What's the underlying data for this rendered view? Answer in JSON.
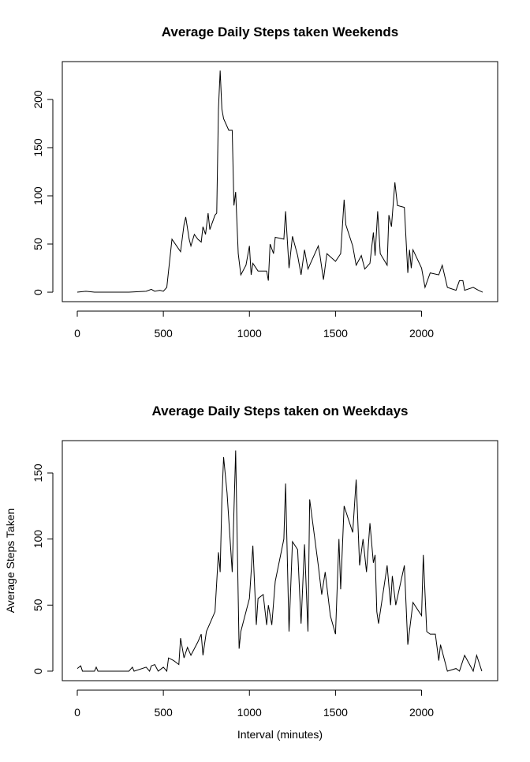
{
  "chart_data": [
    {
      "type": "line",
      "title": "Average Daily Steps taken Weekends",
      "xlim": [
        -87,
        2442
      ],
      "ylim": [
        -9.8,
        239.3
      ],
      "xticks": [
        0,
        500,
        1000,
        1500,
        2000
      ],
      "yticks": [
        0,
        50,
        100,
        150,
        200
      ],
      "grid": false,
      "x": [
        0,
        50,
        100,
        200,
        300,
        400,
        430,
        450,
        480,
        500,
        520,
        550,
        600,
        620,
        630,
        650,
        660,
        680,
        700,
        720,
        730,
        745,
        760,
        770,
        800,
        810,
        820,
        830,
        840,
        850,
        880,
        900,
        910,
        920,
        935,
        950,
        980,
        1000,
        1010,
        1020,
        1050,
        1100,
        1110,
        1120,
        1140,
        1150,
        1200,
        1210,
        1230,
        1250,
        1280,
        1300,
        1320,
        1340,
        1400,
        1410,
        1430,
        1450,
        1500,
        1530,
        1550,
        1560,
        1600,
        1620,
        1650,
        1670,
        1700,
        1720,
        1730,
        1745,
        1760,
        1800,
        1810,
        1825,
        1845,
        1860,
        1900,
        1920,
        1930,
        1940,
        1950,
        2000,
        2020,
        2050,
        2100,
        2120,
        2150,
        2200,
        2220,
        2240,
        2250,
        2300,
        2330,
        2355
      ],
      "series": [
        {
          "color": "#000000",
          "values": [
            0,
            1,
            0,
            0,
            0,
            1,
            3,
            1,
            2,
            1,
            5,
            55,
            42,
            70,
            78,
            55,
            48,
            60,
            55,
            52,
            68,
            60,
            82,
            65,
            80,
            82,
            190,
            230,
            190,
            180,
            168,
            168,
            90,
            104,
            40,
            18,
            28,
            48,
            18,
            30,
            22,
            22,
            12,
            50,
            40,
            57,
            55,
            84,
            25,
            58,
            38,
            18,
            44,
            24,
            48,
            38,
            13,
            40,
            32,
            40,
            96,
            70,
            48,
            28,
            38,
            24,
            30,
            62,
            38,
            84,
            40,
            28,
            80,
            68,
            114,
            90,
            88,
            20,
            44,
            25,
            44,
            25,
            5,
            20,
            18,
            28,
            5,
            2,
            12,
            12,
            2,
            5,
            2,
            0
          ]
        }
      ]
    },
    {
      "type": "line",
      "title": "Average Daily Steps taken on Weekdays",
      "xlabel": "Interval (minutes)",
      "ylabel": "Average Steps Taken",
      "xlim": [
        -87,
        2442
      ],
      "ylim": [
        -7.2,
        174.5
      ],
      "xticks": [
        0,
        500,
        1000,
        1500,
        2000
      ],
      "yticks": [
        0,
        50,
        100,
        150
      ],
      "grid": false,
      "x": [
        0,
        20,
        30,
        100,
        110,
        120,
        200,
        300,
        320,
        330,
        400,
        420,
        430,
        450,
        470,
        500,
        520,
        530,
        560,
        590,
        600,
        620,
        640,
        660,
        700,
        720,
        730,
        750,
        800,
        820,
        830,
        840,
        850,
        870,
        900,
        920,
        940,
        950,
        1000,
        1020,
        1040,
        1050,
        1080,
        1100,
        1110,
        1130,
        1150,
        1200,
        1210,
        1230,
        1250,
        1280,
        1300,
        1320,
        1340,
        1350,
        1400,
        1420,
        1440,
        1470,
        1500,
        1520,
        1530,
        1550,
        1600,
        1620,
        1640,
        1660,
        1680,
        1700,
        1720,
        1730,
        1740,
        1750,
        1800,
        1820,
        1830,
        1850,
        1900,
        1920,
        1950,
        2000,
        2010,
        2030,
        2050,
        2080,
        2100,
        2110,
        2130,
        2150,
        2200,
        2220,
        2250,
        2300,
        2320,
        2350
      ],
      "series": [
        {
          "color": "#000000",
          "values": [
            2,
            4,
            0,
            0,
            3,
            0,
            0,
            0,
            3,
            0,
            3,
            0,
            4,
            5,
            0,
            3,
            0,
            10,
            8,
            5,
            25,
            10,
            18,
            12,
            22,
            28,
            12,
            30,
            45,
            90,
            75,
            130,
            162,
            135,
            75,
            167,
            17,
            30,
            55,
            95,
            35,
            55,
            58,
            35,
            50,
            35,
            68,
            100,
            142,
            30,
            98,
            92,
            36,
            96,
            30,
            130,
            80,
            58,
            75,
            42,
            28,
            100,
            62,
            125,
            105,
            145,
            80,
            100,
            75,
            112,
            82,
            88,
            45,
            36,
            80,
            50,
            72,
            50,
            80,
            20,
            52,
            42,
            88,
            30,
            28,
            28,
            8,
            20,
            10,
            0,
            2,
            0,
            12,
            0,
            12,
            0
          ]
        }
      ]
    }
  ]
}
